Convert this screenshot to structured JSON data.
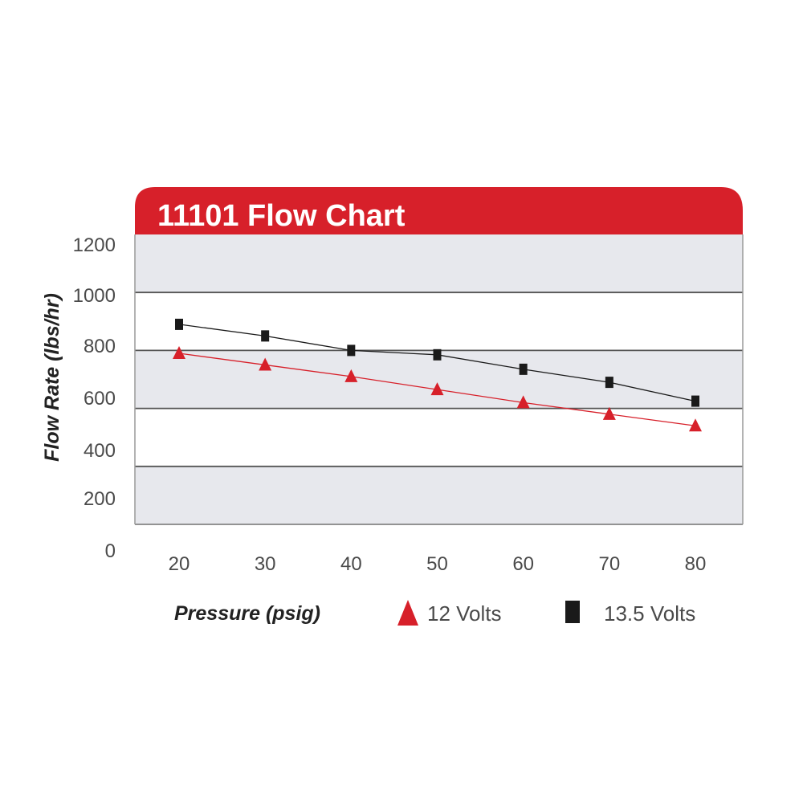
{
  "chart_data": {
    "type": "line",
    "title": "11101 Flow Chart",
    "xlabel": "Pressure (psig)",
    "ylabel": "Flow Rate (lbs/hr)",
    "x": [
      20,
      30,
      40,
      50,
      60,
      70,
      80
    ],
    "x_ticks": [
      "20",
      "30",
      "40",
      "50",
      "60",
      "70",
      "80"
    ],
    "y_ticks": [
      "0",
      "200",
      "400",
      "600",
      "800",
      "1000",
      "1200"
    ],
    "ylim": [
      200,
      1200
    ],
    "grid": true,
    "legend_position": "bottom",
    "series": [
      {
        "name": "12 Volts",
        "marker": "triangle",
        "color": "#d7202a",
        "values": [
          790,
          750,
          710,
          665,
          620,
          580,
          540
        ]
      },
      {
        "name": "13.5 Volts",
        "marker": "square",
        "color": "#1a1a1a",
        "values": [
          890,
          850,
          800,
          785,
          735,
          690,
          625
        ]
      }
    ]
  },
  "colors": {
    "header": "#d7202a",
    "band": "#e7e8ed",
    "gridline": "#555555",
    "frame": "#9a9a9a"
  }
}
